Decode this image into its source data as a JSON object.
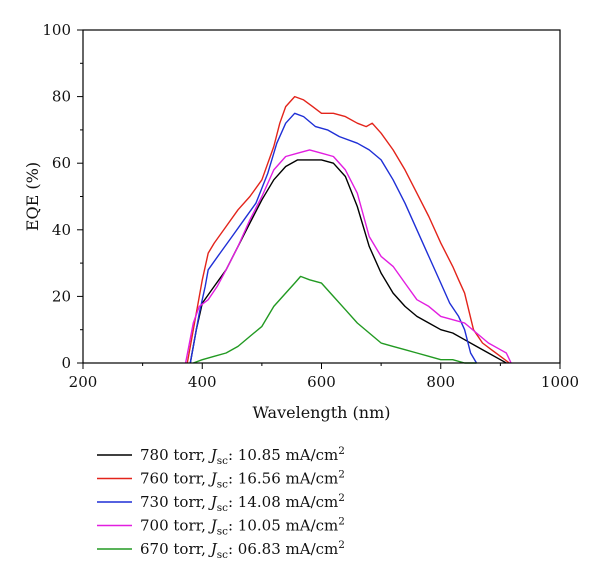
{
  "chart_data": {
    "type": "line",
    "xlabel": "Wavelength (nm)",
    "ylabel": "EQE (%)",
    "xlim": [
      200,
      1000
    ],
    "ylim": [
      0,
      100
    ],
    "xticks": [
      200,
      400,
      600,
      800,
      1000
    ],
    "yticks": [
      0,
      20,
      40,
      60,
      80,
      100
    ],
    "legend_position": "bottom-left, below plot",
    "series": [
      {
        "name": "780 torr",
        "legend": {
          "prefix": "780 torr, ",
          "j": "J",
          "sub": "sc",
          "value": ": 10.85 mA/cm",
          "sup": "2"
        },
        "color": "#000000",
        "points": [
          [
            380,
            0
          ],
          [
            390,
            10
          ],
          [
            400,
            18
          ],
          [
            420,
            23
          ],
          [
            440,
            28
          ],
          [
            460,
            35
          ],
          [
            480,
            42
          ],
          [
            500,
            49
          ],
          [
            520,
            55
          ],
          [
            540,
            59
          ],
          [
            560,
            61
          ],
          [
            580,
            61
          ],
          [
            600,
            61
          ],
          [
            620,
            60
          ],
          [
            640,
            56
          ],
          [
            660,
            47
          ],
          [
            680,
            35
          ],
          [
            700,
            27
          ],
          [
            720,
            21
          ],
          [
            740,
            17
          ],
          [
            760,
            14
          ],
          [
            780,
            12
          ],
          [
            800,
            10
          ],
          [
            820,
            9
          ],
          [
            840,
            7
          ],
          [
            860,
            5
          ],
          [
            880,
            3
          ],
          [
            900,
            1
          ],
          [
            910,
            0
          ]
        ]
      },
      {
        "name": "760 torr",
        "legend": {
          "prefix": "760 torr, ",
          "j": "J",
          "sub": "sc",
          "value": ": 16.56 mA/cm",
          "sup": "2"
        },
        "color": "#e3241b",
        "points": [
          [
            375,
            0
          ],
          [
            390,
            15
          ],
          [
            400,
            25
          ],
          [
            410,
            33
          ],
          [
            420,
            36
          ],
          [
            440,
            41
          ],
          [
            460,
            46
          ],
          [
            480,
            50
          ],
          [
            500,
            55
          ],
          [
            520,
            65
          ],
          [
            530,
            72
          ],
          [
            540,
            77
          ],
          [
            555,
            80
          ],
          [
            570,
            79
          ],
          [
            585,
            77
          ],
          [
            600,
            75
          ],
          [
            620,
            75
          ],
          [
            640,
            74
          ],
          [
            660,
            72
          ],
          [
            675,
            71
          ],
          [
            685,
            72
          ],
          [
            700,
            69
          ],
          [
            720,
            64
          ],
          [
            740,
            58
          ],
          [
            760,
            51
          ],
          [
            780,
            44
          ],
          [
            800,
            36
          ],
          [
            820,
            29
          ],
          [
            830,
            25
          ],
          [
            840,
            21
          ],
          [
            855,
            10
          ],
          [
            870,
            6
          ],
          [
            885,
            4
          ],
          [
            900,
            2
          ],
          [
            915,
            0
          ]
        ]
      },
      {
        "name": "730 torr",
        "legend": {
          "prefix": "730 torr, ",
          "j": "J",
          "sub": "sc",
          "value": ": 14.08 mA/cm",
          "sup": "2"
        },
        "color": "#1f2fd6",
        "points": [
          [
            380,
            0
          ],
          [
            395,
            15
          ],
          [
            405,
            23
          ],
          [
            410,
            28
          ],
          [
            430,
            33
          ],
          [
            450,
            38
          ],
          [
            470,
            43
          ],
          [
            490,
            48
          ],
          [
            510,
            57
          ],
          [
            525,
            66
          ],
          [
            540,
            72
          ],
          [
            555,
            75
          ],
          [
            570,
            74
          ],
          [
            590,
            71
          ],
          [
            610,
            70
          ],
          [
            630,
            68
          ],
          [
            660,
            66
          ],
          [
            680,
            64
          ],
          [
            700,
            61
          ],
          [
            720,
            55
          ],
          [
            740,
            48
          ],
          [
            760,
            40
          ],
          [
            780,
            32
          ],
          [
            800,
            24
          ],
          [
            815,
            18
          ],
          [
            830,
            14
          ],
          [
            840,
            10
          ],
          [
            850,
            3
          ],
          [
            860,
            0
          ]
        ]
      },
      {
        "name": "700 torr",
        "legend": {
          "prefix": "700 torr, ",
          "j": "J",
          "sub": "sc",
          "value": ": 10.05 mA/cm",
          "sup": "2"
        },
        "color": "#e21ee0",
        "points": [
          [
            372,
            0
          ],
          [
            385,
            12
          ],
          [
            395,
            17
          ],
          [
            410,
            19
          ],
          [
            425,
            23
          ],
          [
            440,
            28
          ],
          [
            460,
            35
          ],
          [
            480,
            43
          ],
          [
            500,
            50
          ],
          [
            520,
            58
          ],
          [
            540,
            62
          ],
          [
            560,
            63
          ],
          [
            580,
            64
          ],
          [
            600,
            63
          ],
          [
            620,
            62
          ],
          [
            640,
            58
          ],
          [
            660,
            51
          ],
          [
            680,
            38
          ],
          [
            700,
            32
          ],
          [
            720,
            29
          ],
          [
            740,
            24
          ],
          [
            760,
            19
          ],
          [
            780,
            17
          ],
          [
            800,
            14
          ],
          [
            820,
            13
          ],
          [
            840,
            12
          ],
          [
            860,
            9
          ],
          [
            880,
            6
          ],
          [
            900,
            4
          ],
          [
            910,
            3
          ],
          [
            918,
            0
          ]
        ]
      },
      {
        "name": "670 torr",
        "legend": {
          "prefix": "670 torr, ",
          "j": "J",
          "sub": "sc",
          "value": ": 06.83 mA/cm",
          "sup": "2"
        },
        "color": "#229a22",
        "points": [
          [
            385,
            0
          ],
          [
            400,
            1
          ],
          [
            420,
            2
          ],
          [
            440,
            3
          ],
          [
            460,
            5
          ],
          [
            480,
            8
          ],
          [
            500,
            11
          ],
          [
            520,
            17
          ],
          [
            540,
            21
          ],
          [
            555,
            24
          ],
          [
            565,
            26
          ],
          [
            580,
            25
          ],
          [
            600,
            24
          ],
          [
            620,
            20
          ],
          [
            640,
            16
          ],
          [
            660,
            12
          ],
          [
            680,
            9
          ],
          [
            700,
            6
          ],
          [
            720,
            5
          ],
          [
            740,
            4
          ],
          [
            760,
            3
          ],
          [
            780,
            2
          ],
          [
            800,
            1
          ],
          [
            820,
            1
          ],
          [
            840,
            0
          ],
          [
            860,
            0
          ]
        ]
      }
    ]
  }
}
